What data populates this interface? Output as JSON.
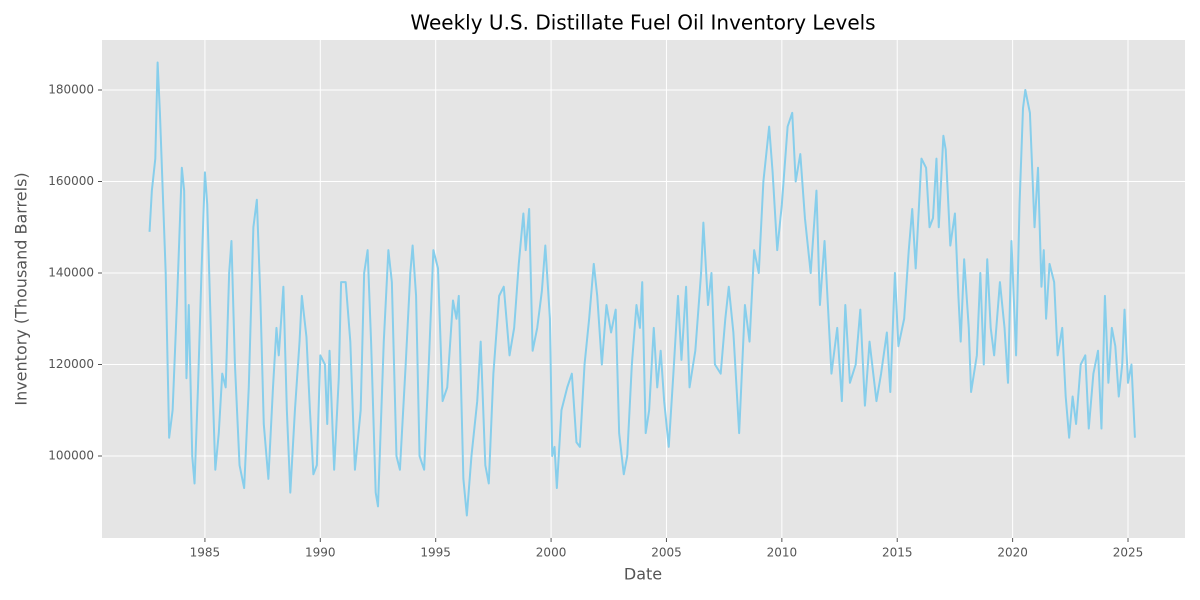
{
  "chart_data": {
    "type": "line",
    "title": "Weekly U.S. Distillate Fuel Oil Inventory Levels",
    "x_label": "Date",
    "y_label": "Inventory (Thousand Barrels)",
    "xlim": [
      1980.54,
      2027.47
    ],
    "ylim": [
      82077,
      190929
    ],
    "xticks": [
      1985,
      1990,
      1995,
      2000,
      2005,
      2010,
      2015,
      2020,
      2025
    ],
    "yticks": [
      100000,
      120000,
      140000,
      160000,
      180000
    ],
    "grid": true,
    "background": "#e5e5e5",
    "x": [
      1982.6,
      1982.7,
      1982.85,
      1982.95,
      1983.05,
      1983.3,
      1983.45,
      1983.6,
      1983.8,
      1984.0,
      1984.1,
      1984.2,
      1984.3,
      1984.45,
      1984.55,
      1984.7,
      1984.85,
      1985.0,
      1985.1,
      1985.3,
      1985.45,
      1985.6,
      1985.75,
      1985.9,
      1986.05,
      1986.15,
      1986.3,
      1986.5,
      1986.7,
      1986.9,
      1987.1,
      1987.25,
      1987.4,
      1987.55,
      1987.75,
      1987.95,
      1988.1,
      1988.2,
      1988.4,
      1988.55,
      1988.7,
      1988.9,
      1989.1,
      1989.2,
      1989.4,
      1989.55,
      1989.7,
      1989.85,
      1990.0,
      1990.2,
      1990.3,
      1990.4,
      1990.6,
      1990.8,
      1990.9,
      1991.1,
      1991.3,
      1991.5,
      1991.75,
      1991.9,
      1992.05,
      1992.2,
      1992.4,
      1992.5,
      1992.75,
      1992.95,
      1993.1,
      1993.3,
      1993.45,
      1993.7,
      1993.9,
      1994.0,
      1994.15,
      1994.3,
      1994.5,
      1994.7,
      1994.9,
      1995.1,
      1995.3,
      1995.5,
      1995.75,
      1995.9,
      1996.0,
      1996.2,
      1996.35,
      1996.55,
      1996.8,
      1996.95,
      1997.15,
      1997.3,
      1997.5,
      1997.75,
      1997.95,
      1998.2,
      1998.4,
      1998.6,
      1998.8,
      1998.9,
      1999.05,
      1999.2,
      1999.4,
      1999.6,
      1999.75,
      1999.95,
      2000.05,
      2000.15,
      2000.25,
      2000.45,
      2000.7,
      2000.9,
      2001.1,
      2001.25,
      2001.45,
      2001.65,
      2001.85,
      2002.0,
      2002.2,
      2002.4,
      2002.6,
      2002.8,
      2002.95,
      2003.15,
      2003.3,
      2003.5,
      2003.7,
      2003.85,
      2003.95,
      2004.1,
      2004.25,
      2004.45,
      2004.6,
      2004.75,
      2004.9,
      2005.1,
      2005.3,
      2005.5,
      2005.65,
      2005.85,
      2006.0,
      2006.25,
      2006.5,
      2006.6,
      2006.8,
      2006.95,
      2007.1,
      2007.35,
      2007.55,
      2007.7,
      2007.9,
      2008.15,
      2008.4,
      2008.6,
      2008.8,
      2009.0,
      2009.2,
      2009.45,
      2009.6,
      2009.8,
      2010.0,
      2010.25,
      2010.45,
      2010.6,
      2010.8,
      2011.0,
      2011.25,
      2011.5,
      2011.65,
      2011.85,
      2012.15,
      2012.4,
      2012.6,
      2012.75,
      2012.95,
      2013.2,
      2013.4,
      2013.6,
      2013.8,
      2014.1,
      2014.3,
      2014.55,
      2014.7,
      2014.9,
      2015.05,
      2015.3,
      2015.5,
      2015.65,
      2015.8,
      2016.05,
      2016.25,
      2016.4,
      2016.55,
      2016.7,
      2016.8,
      2017.0,
      2017.1,
      2017.3,
      2017.5,
      2017.65,
      2017.75,
      2017.9,
      2018.1,
      2018.2,
      2018.45,
      2018.6,
      2018.75,
      2018.9,
      2019.05,
      2019.2,
      2019.45,
      2019.65,
      2019.8,
      2019.95,
      2020.15,
      2020.3,
      2020.45,
      2020.55,
      2020.75,
      2020.95,
      2021.1,
      2021.25,
      2021.35,
      2021.45,
      2021.6,
      2021.8,
      2021.95,
      2022.15,
      2022.3,
      2022.45,
      2022.6,
      2022.75,
      2022.95,
      2023.15,
      2023.3,
      2023.5,
      2023.7,
      2023.85,
      2024.0,
      2024.15,
      2024.3,
      2024.45,
      2024.6,
      2024.75,
      2024.85,
      2025.0,
      2025.15,
      2025.3
    ],
    "series": [
      {
        "name": "Inventory",
        "color": "#87ceeb",
        "values": [
          149000,
          158000,
          165000,
          186000,
          175000,
          140000,
          104000,
          110000,
          135000,
          163000,
          158000,
          117000,
          133000,
          100000,
          94000,
          115000,
          140000,
          162000,
          155000,
          120000,
          97000,
          105000,
          118000,
          115000,
          140000,
          147000,
          120000,
          98000,
          93000,
          115000,
          150000,
          156000,
          135000,
          107000,
          95000,
          115000,
          128000,
          122000,
          137000,
          110000,
          92000,
          110000,
          125000,
          135000,
          126000,
          110000,
          96000,
          98000,
          122000,
          120000,
          107000,
          123000,
          97000,
          117000,
          138000,
          138000,
          125000,
          97000,
          110000,
          140000,
          145000,
          125000,
          92000,
          89000,
          125000,
          145000,
          138000,
          100000,
          97000,
          120000,
          140000,
          146000,
          135000,
          100000,
          97000,
          120000,
          145000,
          141000,
          112000,
          115000,
          134000,
          130000,
          135000,
          95000,
          87000,
          100000,
          112000,
          125000,
          98000,
          94000,
          118000,
          135000,
          137000,
          122000,
          128000,
          142000,
          153000,
          145000,
          154000,
          123000,
          128000,
          136000,
          146000,
          130000,
          100000,
          102000,
          93000,
          110000,
          115000,
          118000,
          103000,
          102000,
          120000,
          130000,
          142000,
          135000,
          120000,
          133000,
          127000,
          132000,
          105000,
          96000,
          100000,
          120000,
          133000,
          128000,
          138000,
          105000,
          110000,
          128000,
          115000,
          123000,
          112000,
          102000,
          118000,
          135000,
          121000,
          137000,
          115000,
          123000,
          140000,
          151000,
          133000,
          140000,
          120000,
          118000,
          130000,
          137000,
          127000,
          105000,
          133000,
          125000,
          145000,
          140000,
          160000,
          172000,
          162000,
          145000,
          155000,
          172000,
          175000,
          160000,
          166000,
          152000,
          140000,
          158000,
          133000,
          147000,
          118000,
          128000,
          112000,
          133000,
          116000,
          120000,
          132000,
          111000,
          125000,
          112000,
          118000,
          127000,
          114000,
          140000,
          124000,
          130000,
          145000,
          154000,
          141000,
          165000,
          163000,
          150000,
          152000,
          165000,
          150000,
          170000,
          167000,
          146000,
          153000,
          135000,
          125000,
          143000,
          128000,
          114000,
          122000,
          140000,
          120000,
          143000,
          128000,
          122000,
          138000,
          128000,
          116000,
          147000,
          122000,
          155000,
          176000,
          180000,
          175000,
          150000,
          163000,
          137000,
          145000,
          130000,
          142000,
          138000,
          122000,
          128000,
          113000,
          104000,
          113000,
          107000,
          120000,
          122000,
          106000,
          118000,
          123000,
          106000,
          135000,
          116000,
          128000,
          124000,
          113000,
          120000,
          132000,
          116000,
          120000,
          104000
        ]
      }
    ]
  }
}
